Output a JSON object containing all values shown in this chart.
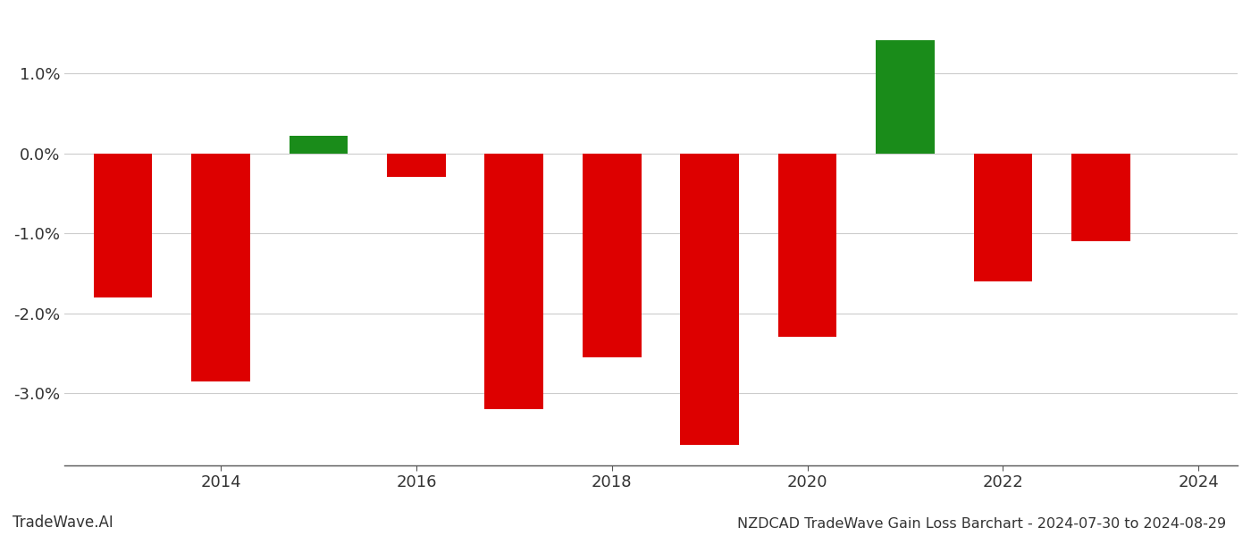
{
  "years": [
    2013,
    2014,
    2015,
    2016,
    2017,
    2018,
    2019,
    2020,
    2021,
    2022,
    2023
  ],
  "values": [
    -1.8,
    -2.85,
    0.22,
    -0.3,
    -3.2,
    -2.55,
    -3.65,
    -2.3,
    1.42,
    -1.6,
    -1.1
  ],
  "bar_colors": [
    "#dd0000",
    "#dd0000",
    "#1a8c1a",
    "#dd0000",
    "#dd0000",
    "#dd0000",
    "#dd0000",
    "#dd0000",
    "#1a8c1a",
    "#dd0000",
    "#dd0000"
  ],
  "title": "NZDCAD TradeWave Gain Loss Barchart - 2024-07-30 to 2024-08-29",
  "watermark": "TradeWave.AI",
  "ylim_min": -3.9,
  "ylim_max": 1.75,
  "background_color": "#ffffff",
  "grid_color": "#cccccc",
  "title_fontsize": 11.5,
  "tick_fontsize": 13,
  "watermark_fontsize": 12
}
